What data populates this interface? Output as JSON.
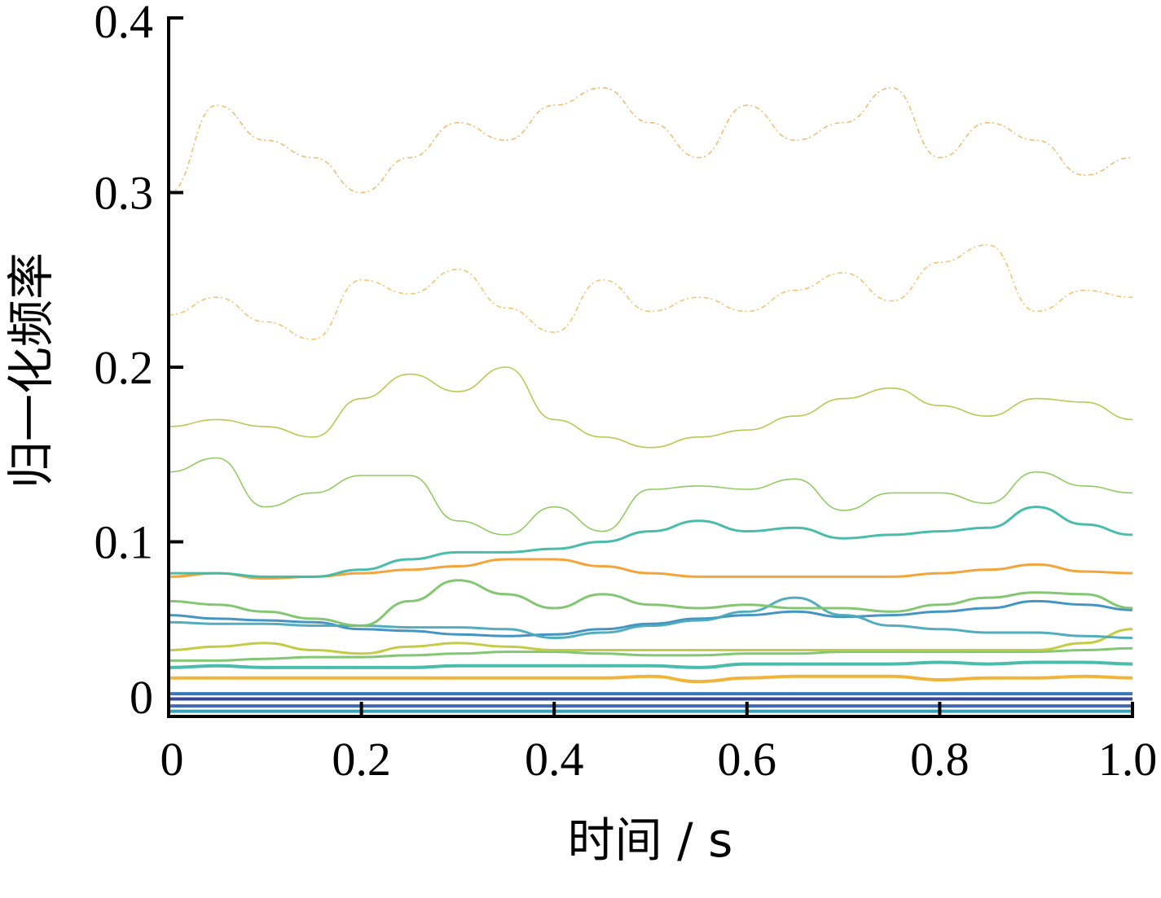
{
  "chart_data": {
    "type": "line",
    "title": "",
    "xlabel": "时间 / s",
    "ylabel": "归一化频率",
    "xlim": [
      0,
      1.0
    ],
    "ylim": [
      0,
      0.4
    ],
    "x_ticks": [
      "0",
      "0.2",
      "0.4",
      "0.6",
      "0.8",
      "1.0"
    ],
    "y_ticks": [
      "0",
      "0.1",
      "0.2",
      "0.3",
      "0.4"
    ],
    "grid": false,
    "colormap": [
      "#2b3f9a",
      "#3a6fb5",
      "#2d9db5",
      "#3fb8a8",
      "#7cc46a",
      "#c2c83a",
      "#f0b030",
      "#e8a040"
    ],
    "x": [
      0,
      0.05,
      0.1,
      0.15,
      0.2,
      0.25,
      0.3,
      0.35,
      0.4,
      0.45,
      0.5,
      0.55,
      0.6,
      0.65,
      0.7,
      0.75,
      0.8,
      0.85,
      0.9,
      0.95,
      1.0
    ],
    "series": [
      {
        "color": "#2b3f9a",
        "values": [
          0.01,
          0.01,
          0.01,
          0.01,
          0.01,
          0.01,
          0.01,
          0.01,
          0.01,
          0.01,
          0.01,
          0.01,
          0.01,
          0.01,
          0.01,
          0.01,
          0.01,
          0.01,
          0.01,
          0.01,
          0.01
        ]
      },
      {
        "color": "#3a5fb0",
        "values": [
          0.006,
          0.006,
          0.006,
          0.006,
          0.006,
          0.006,
          0.006,
          0.006,
          0.006,
          0.006,
          0.006,
          0.006,
          0.006,
          0.006,
          0.006,
          0.006,
          0.006,
          0.006,
          0.006,
          0.006,
          0.006
        ]
      },
      {
        "color": "#2d6fb8",
        "values": [
          0.013,
          0.013,
          0.013,
          0.013,
          0.013,
          0.013,
          0.013,
          0.013,
          0.013,
          0.013,
          0.013,
          0.013,
          0.013,
          0.013,
          0.013,
          0.013,
          0.013,
          0.013,
          0.013,
          0.013,
          0.013
        ]
      },
      {
        "color": "#2d9db5",
        "values": [
          0.003,
          0.003,
          0.003,
          0.003,
          0.003,
          0.003,
          0.003,
          0.003,
          0.003,
          0.003,
          0.003,
          0.003,
          0.003,
          0.003,
          0.003,
          0.003,
          0.003,
          0.003,
          0.003,
          0.003,
          0.003
        ]
      },
      {
        "color": "#f0b030",
        "values": [
          0.022,
          0.022,
          0.022,
          0.022,
          0.022,
          0.022,
          0.022,
          0.022,
          0.022,
          0.022,
          0.023,
          0.02,
          0.022,
          0.023,
          0.023,
          0.023,
          0.021,
          0.022,
          0.022,
          0.023,
          0.022
        ]
      },
      {
        "color": "#3fb8a8",
        "values": [
          0.028,
          0.029,
          0.028,
          0.028,
          0.028,
          0.028,
          0.029,
          0.029,
          0.029,
          0.029,
          0.029,
          0.028,
          0.03,
          0.03,
          0.03,
          0.03,
          0.031,
          0.03,
          0.031,
          0.031,
          0.03
        ]
      },
      {
        "color": "#7cc46a",
        "values": [
          0.032,
          0.032,
          0.033,
          0.034,
          0.034,
          0.035,
          0.036,
          0.037,
          0.037,
          0.036,
          0.035,
          0.035,
          0.036,
          0.036,
          0.037,
          0.037,
          0.037,
          0.037,
          0.037,
          0.038,
          0.039
        ]
      },
      {
        "color": "#c2c83a",
        "values": [
          0.038,
          0.04,
          0.042,
          0.038,
          0.036,
          0.04,
          0.042,
          0.04,
          0.038,
          0.038,
          0.038,
          0.038,
          0.038,
          0.038,
          0.038,
          0.038,
          0.038,
          0.038,
          0.038,
          0.042,
          0.05
        ]
      },
      {
        "color": "#3a8fc0",
        "values": [
          0.058,
          0.056,
          0.055,
          0.054,
          0.05,
          0.049,
          0.047,
          0.046,
          0.047,
          0.05,
          0.053,
          0.056,
          0.058,
          0.06,
          0.057,
          0.058,
          0.06,
          0.062,
          0.066,
          0.064,
          0.061
        ]
      },
      {
        "color": "#4aa9b8",
        "values": [
          0.054,
          0.053,
          0.053,
          0.052,
          0.052,
          0.051,
          0.051,
          0.05,
          0.045,
          0.048,
          0.052,
          0.055,
          0.06,
          0.068,
          0.058,
          0.052,
          0.05,
          0.048,
          0.048,
          0.046,
          0.045
        ]
      },
      {
        "color": "#7cc46a",
        "values": [
          0.066,
          0.064,
          0.06,
          0.056,
          0.052,
          0.066,
          0.078,
          0.07,
          0.062,
          0.07,
          0.064,
          0.062,
          0.064,
          0.062,
          0.062,
          0.06,
          0.064,
          0.068,
          0.071,
          0.07,
          0.062
        ]
      },
      {
        "color": "#f0a030",
        "values": [
          0.08,
          0.082,
          0.079,
          0.08,
          0.082,
          0.084,
          0.086,
          0.09,
          0.09,
          0.086,
          0.082,
          0.08,
          0.08,
          0.08,
          0.08,
          0.08,
          0.082,
          0.084,
          0.087,
          0.083,
          0.082
        ]
      },
      {
        "color": "#3fb8a8",
        "values": [
          0.082,
          0.082,
          0.08,
          0.08,
          0.084,
          0.09,
          0.094,
          0.094,
          0.096,
          0.1,
          0.106,
          0.112,
          0.106,
          0.108,
          0.102,
          0.104,
          0.106,
          0.108,
          0.12,
          0.11,
          0.104
        ]
      },
      {
        "color": "#8cc85a",
        "values": [
          0.14,
          0.148,
          0.12,
          0.128,
          0.138,
          0.138,
          0.112,
          0.104,
          0.12,
          0.106,
          0.13,
          0.132,
          0.13,
          0.136,
          0.118,
          0.128,
          0.128,
          0.122,
          0.14,
          0.132,
          0.128
        ]
      },
      {
        "color": "#b0c848",
        "values": [
          0.166,
          0.17,
          0.166,
          0.16,
          0.182,
          0.196,
          0.186,
          0.2,
          0.17,
          0.16,
          0.154,
          0.16,
          0.164,
          0.172,
          0.182,
          0.188,
          0.178,
          0.172,
          0.182,
          0.18,
          0.17
        ]
      },
      {
        "color": "#f0b040",
        "values": [
          0.23,
          0.24,
          0.226,
          0.216,
          0.25,
          0.242,
          0.256,
          0.234,
          0.22,
          0.25,
          0.232,
          0.24,
          0.232,
          0.244,
          0.254,
          0.238,
          0.26,
          0.27,
          0.232,
          0.244,
          0.24
        ]
      },
      {
        "color": "#e8a848",
        "values": [
          0.3,
          0.35,
          0.33,
          0.32,
          0.3,
          0.32,
          0.34,
          0.33,
          0.35,
          0.36,
          0.34,
          0.32,
          0.35,
          0.33,
          0.34,
          0.36,
          0.32,
          0.34,
          0.33,
          0.31,
          0.32
        ]
      }
    ]
  }
}
